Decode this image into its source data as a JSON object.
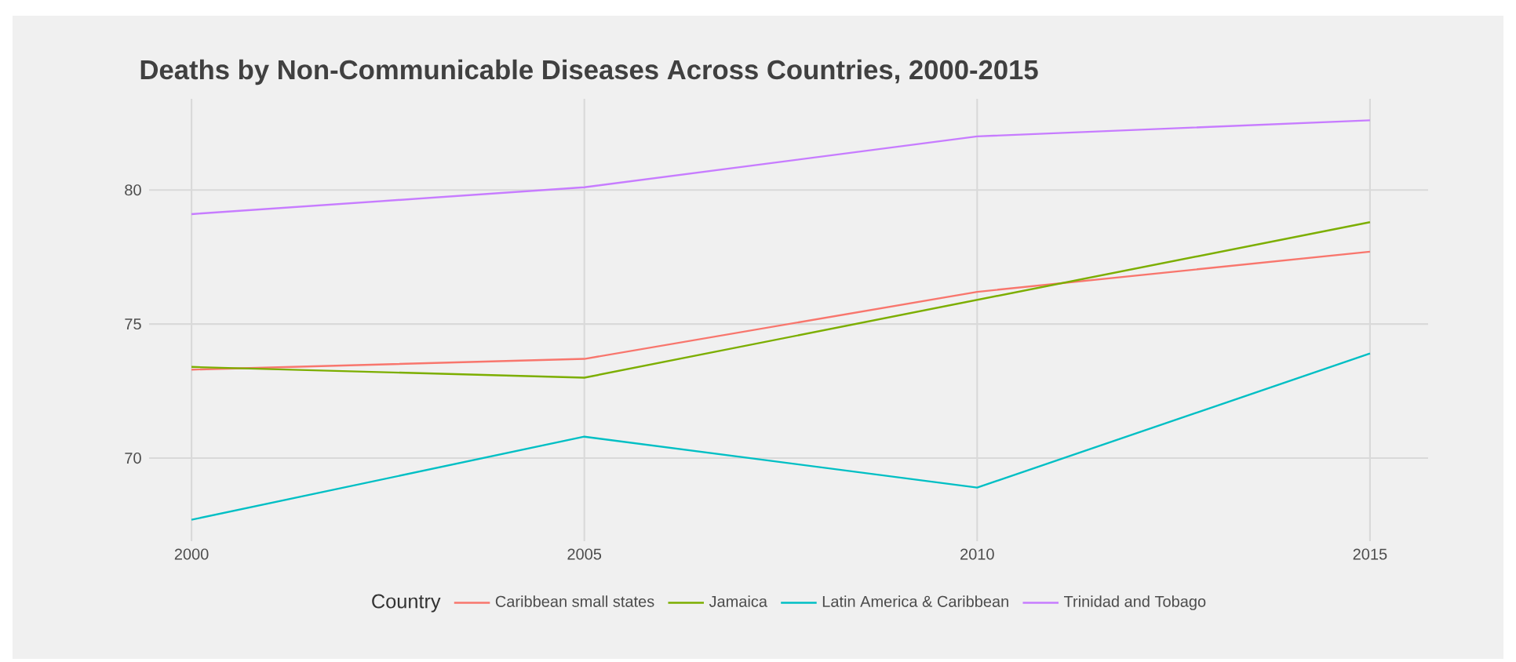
{
  "chart_data": {
    "type": "line",
    "title": "Deaths by Non-Communicable Diseases Across Countries, 2000-2015",
    "x": [
      2000,
      2005,
      2010,
      2015
    ],
    "series": [
      {
        "name": "Caribbean small states",
        "color": "#f8766d",
        "values": [
          73.3,
          73.7,
          76.2,
          77.7
        ]
      },
      {
        "name": "Jamaica",
        "color": "#7cae00",
        "values": [
          73.4,
          73.0,
          75.9,
          78.8
        ]
      },
      {
        "name": "Latin America & Caribbean",
        "color": "#00bfc4",
        "values": [
          67.7,
          70.8,
          68.9,
          73.9
        ]
      },
      {
        "name": "Trinidad and Tobago",
        "color": "#c77cff",
        "values": [
          79.1,
          80.1,
          82.0,
          82.6
        ]
      }
    ],
    "xlim": [
      1999.46,
      2015.74
    ],
    "ylim": [
      66.9,
      83.4
    ],
    "xticks": [
      2000,
      2005,
      2010,
      2015
    ],
    "yticks": [
      70,
      75,
      80
    ],
    "grid": true,
    "legend": "bottom",
    "legend_title": "Country",
    "marker": "none"
  }
}
